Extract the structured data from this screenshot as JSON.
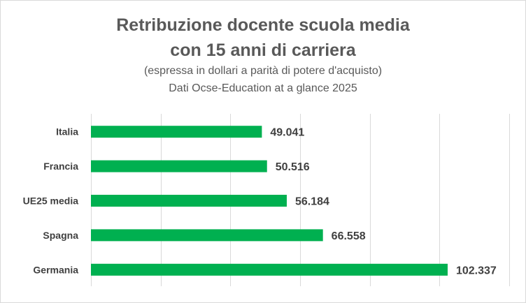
{
  "chart_data": {
    "type": "bar",
    "orientation": "horizontal",
    "title_line1": "Retribuzione docente scuola media",
    "title_line2": "con 15 anni di carriera",
    "subtitle_line1": "(espressa in dollari a parità di potere d'acquisto)",
    "subtitle_line2": "Dati Ocse-Education at a glance 2025",
    "categories": [
      "Italia",
      "Francia",
      "UE25 media",
      "Spagna",
      "Germania"
    ],
    "values": [
      49041,
      50516,
      56184,
      66558,
      102337
    ],
    "value_labels": [
      "49.041",
      "50.516",
      "56.184",
      "66.558",
      "102.337"
    ],
    "xlim": [
      0,
      120000
    ],
    "grid": "vertical",
    "legend": "none",
    "bar_color": "#00b050",
    "grid_color": "#d9d9d9",
    "text_color": "#404040",
    "title_color": "#595959"
  }
}
